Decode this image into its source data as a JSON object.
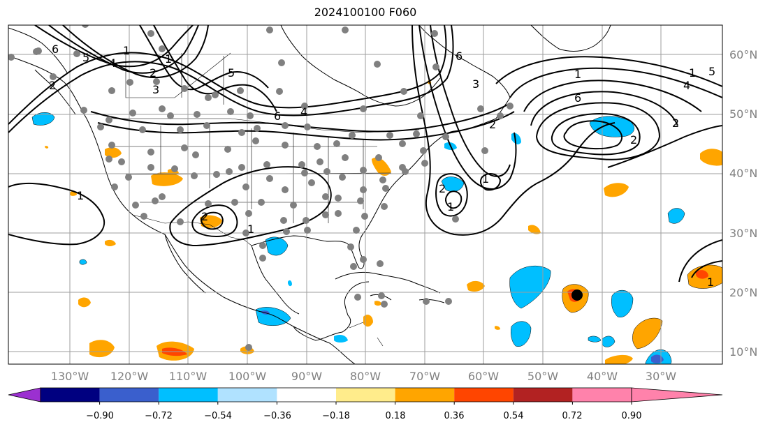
{
  "title": "2024100100 F060",
  "map": {
    "lat_labels": [
      "60°N",
      "50°N",
      "40°N",
      "30°N",
      "20°N",
      "10°N"
    ],
    "lon_labels": [
      "130°W",
      "120°W",
      "110°W",
      "100°W",
      "90°W",
      "80°W",
      "70°W",
      "60°W",
      "50°W",
      "40°W",
      "30°W"
    ],
    "contour_labels": [
      "6",
      "5",
      "4",
      "3",
      "2",
      "1",
      "1",
      "5",
      "6",
      "2",
      "4",
      "6",
      "3",
      "2",
      "1",
      "6",
      "5",
      "4",
      "2",
      "1",
      "2",
      "1",
      "1",
      "2",
      "1",
      "2",
      "1",
      "1"
    ]
  },
  "colorbar": {
    "ticks": [
      "−0.90",
      "−0.72",
      "−0.54",
      "−0.36",
      "−0.18",
      "0.18",
      "0.36",
      "0.54",
      "0.72",
      "0.90"
    ],
    "colors": [
      "#9b30d0",
      "#000080",
      "#3a5fcd",
      "#00bfff",
      "#b0e2ff",
      "#ffffff",
      "#ffec8b",
      "#ffa500",
      "#ff4500",
      "#b22222",
      "#ff82ab",
      "#ff82ab"
    ]
  },
  "colors": {
    "neg_light": "#00bfff",
    "neg_mid": "#3a5fcd",
    "pos_light": "#ffa500",
    "pos_mid": "#ff4500",
    "station_dot": "#808080"
  }
}
